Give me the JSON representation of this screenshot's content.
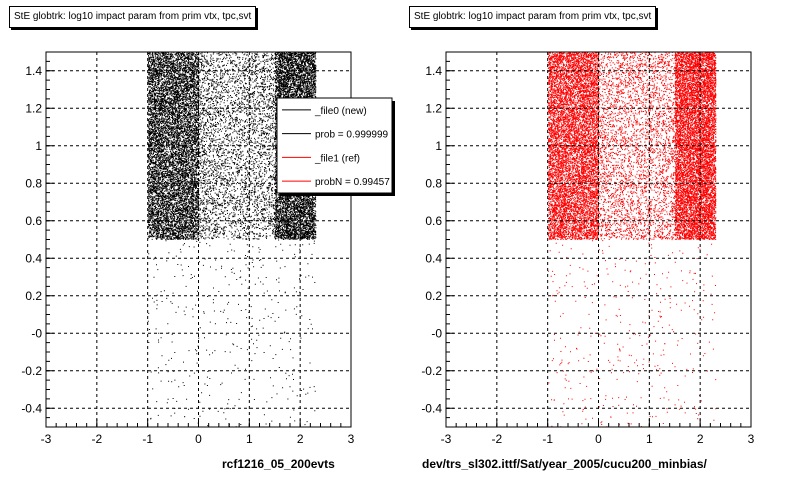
{
  "chart_data": [
    {
      "type": "scatter",
      "title": "StE globtrk: log10 impact param from prim vtx, tpc,svt",
      "footer": "rcf1216_05_200evts",
      "xlim": [
        -3,
        3
      ],
      "ylim": [
        -0.5,
        1.5
      ],
      "x_ticks": [
        "-3",
        "-2",
        "-1",
        "0",
        "1",
        "2",
        "3"
      ],
      "y_ticks": [
        "-0.4",
        "-0.2",
        "-0",
        "0.2",
        "0.4",
        "0.6",
        "0.8",
        "1",
        "1.2",
        "1.4"
      ],
      "grid": true,
      "series": [
        {
          "name": "_file0 (new)",
          "color": "#000000",
          "bands": [
            {
              "x_min": -1.0,
              "x_max": 0.0,
              "y_min": 0.5,
              "y_max": 1.5,
              "density": "high"
            },
            {
              "x_min": 1.5,
              "x_max": 2.3,
              "y_min": 0.5,
              "y_max": 1.5,
              "density": "high"
            },
            {
              "x_min": 0.0,
              "x_max": 1.5,
              "y_min": 0.5,
              "y_max": 1.5,
              "density": "medium"
            },
            {
              "x_min": -1.0,
              "x_max": 2.3,
              "y_min": -0.5,
              "y_max": 0.5,
              "density": "sparse"
            }
          ]
        }
      ],
      "legend": {
        "placement": "top-right",
        "entries": [
          {
            "label": "_file0 (new)",
            "color": "#000000"
          },
          {
            "label": "prob = 0.999999",
            "color": "#000000"
          },
          {
            "label": "_file1 (ref)",
            "color": "#ff0000"
          },
          {
            "label": "probN = 0.99457",
            "color": "#ff0000"
          }
        ]
      }
    },
    {
      "type": "scatter",
      "title": "StE globtrk: log10 impact param from prim vtx, tpc,svt",
      "footer": "dev/trs_sl302.ittf/Sat/year_2005/cucu200_minbias/",
      "xlim": [
        -3,
        3
      ],
      "ylim": [
        -0.5,
        1.5
      ],
      "x_ticks": [
        "-3",
        "-2",
        "-1",
        "0",
        "1",
        "2",
        "3"
      ],
      "y_ticks": [
        "-0.4",
        "-0.2",
        "-0",
        "0.2",
        "0.4",
        "0.6",
        "0.8",
        "1",
        "1.2",
        "1.4"
      ],
      "grid": true,
      "series": [
        {
          "name": "_file1 (ref)",
          "color": "#ff0000",
          "bands": [
            {
              "x_min": -1.0,
              "x_max": 0.0,
              "y_min": 0.5,
              "y_max": 1.5,
              "density": "high"
            },
            {
              "x_min": 1.5,
              "x_max": 2.3,
              "y_min": 0.5,
              "y_max": 1.5,
              "density": "high"
            },
            {
              "x_min": 0.0,
              "x_max": 1.5,
              "y_min": 0.5,
              "y_max": 1.5,
              "density": "medium"
            },
            {
              "x_min": -1.0,
              "x_max": 2.3,
              "y_min": -0.5,
              "y_max": 0.5,
              "density": "sparse"
            }
          ]
        }
      ]
    }
  ]
}
